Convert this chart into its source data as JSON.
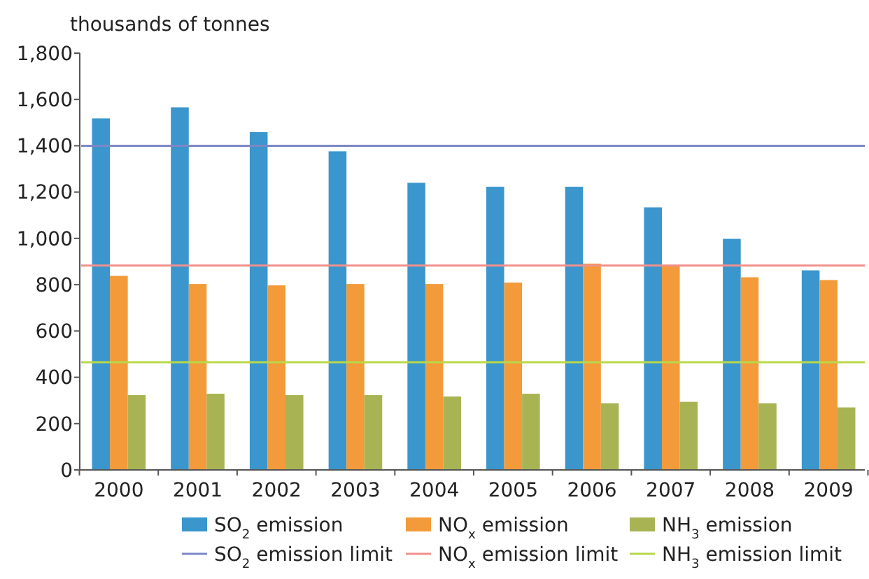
{
  "chart_data": {
    "type": "bar",
    "ylabel": "thousands of tonnes",
    "categories": [
      "2000",
      "2001",
      "2002",
      "2003",
      "2004",
      "2005",
      "2006",
      "2007",
      "2008",
      "2009"
    ],
    "series": [
      {
        "name": "SO$_{2}$ emission",
        "color": "#3a96cc",
        "values": [
          1518,
          1566,
          1459,
          1376,
          1240,
          1223,
          1223,
          1134,
          998,
          862
        ]
      },
      {
        "name": "NO$_{x}$ emission",
        "color": "#f39a3a",
        "values": [
          838,
          803,
          797,
          803,
          803,
          809,
          891,
          885,
          832,
          820
        ]
      },
      {
        "name": "NH$_{3}$ emission",
        "color": "#a8b453",
        "values": [
          323,
          329,
          323,
          323,
          317,
          329,
          288,
          294,
          288,
          270
        ]
      }
    ],
    "ref_lines": [
      {
        "axis": "y",
        "value": 1400,
        "label": "SO$_{2}$ emission limit",
        "color": "#7b87c6"
      },
      {
        "axis": "y",
        "value": 883,
        "label": "NO$_{x}$ emission limit",
        "color": "#f2908c"
      },
      {
        "axis": "y",
        "value": 465,
        "label": "NH$_{3}$ emission limit",
        "color": "#b8d84a"
      }
    ],
    "ylim": [
      0,
      1800
    ],
    "yticks": [
      0,
      200,
      400,
      600,
      800,
      {
        "value": 1000,
        "label": "1,000"
      },
      {
        "value": 1200,
        "label": "1,200"
      },
      {
        "value": 1400,
        "label": "1,400"
      },
      {
        "value": 1600,
        "label": "1,600"
      },
      {
        "value": 1800,
        "label": "1,800"
      }
    ],
    "grid": false,
    "legend": "bottom"
  }
}
